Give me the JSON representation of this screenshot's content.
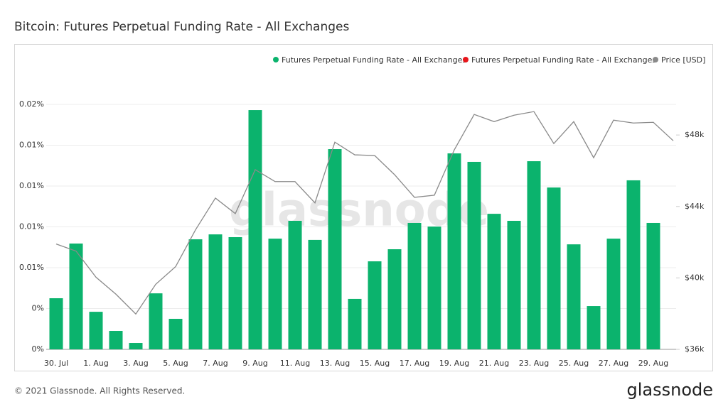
{
  "chart_data": {
    "type": "bar",
    "title": "Bitcoin: Futures Perpetual Funding Rate - All Exchanges",
    "footer": "© 2021 Glassnode. All Rights Reserved.",
    "logo": "glassnode",
    "watermark": "glassnode",
    "categories": [
      "30. Jul",
      null,
      "1. Aug",
      null,
      "3. Aug",
      null,
      "5. Aug",
      null,
      "7. Aug",
      null,
      "9. Aug",
      null,
      "11. Aug",
      null,
      "13. Aug",
      null,
      "15. Aug",
      null,
      "17. Aug",
      null,
      "19. Aug",
      null,
      "21. Aug",
      null,
      "23. Aug",
      null,
      "25. Aug",
      null,
      "27. Aug",
      null,
      "29. Aug",
      null
    ],
    "series": [
      {
        "name": "Futures Perpetual Funding Rate - All Exchanges",
        "type": "bar",
        "color": "#0bb36d",
        "values": [
          0.00313,
          0.00648,
          0.0023,
          0.00113,
          0.00039,
          0.00343,
          0.00187,
          0.00674,
          0.00704,
          0.00687,
          0.01465,
          0.00678,
          0.00787,
          0.0067,
          0.01226,
          0.00309,
          0.00539,
          0.00613,
          0.00774,
          0.00752,
          0.012,
          0.01148,
          0.0083,
          0.00787,
          0.01152,
          0.00991,
          0.00643,
          0.00265,
          0.00678,
          0.01035,
          0.00774,
          null
        ]
      },
      {
        "name": "Futures Perpetual Funding Rate - All Exchanges",
        "type": "bar",
        "color": "#e8151b",
        "values": [
          null,
          null,
          null,
          null,
          null,
          null,
          null,
          null,
          null,
          null,
          null,
          null,
          null,
          null,
          null,
          null,
          null,
          null,
          null,
          null,
          null,
          null,
          null,
          null,
          null,
          null,
          null,
          null,
          null,
          null,
          null,
          null
        ]
      },
      {
        "name": "Price [USD]",
        "type": "line",
        "axis": "y2",
        "color": "#8a8a8a",
        "values": [
          41900,
          41500,
          40040,
          39090,
          37980,
          39640,
          40630,
          42690,
          44470,
          43600,
          46060,
          45390,
          45390,
          44200,
          47600,
          46890,
          46850,
          45780,
          44510,
          44630,
          47170,
          49150,
          48750,
          49110,
          49310,
          47520,
          48750,
          46730,
          48830,
          48670,
          48710,
          47680
        ]
      }
    ],
    "ylim": [
      0,
      0.0175
    ],
    "yticks": [
      {
        "value": 0,
        "label": "0%"
      },
      {
        "value": 0.0025,
        "label": "0%"
      },
      {
        "value": 0.005,
        "label": "0.01%"
      },
      {
        "value": 0.0075,
        "label": "0.01%"
      },
      {
        "value": 0.01,
        "label": "0.01%"
      },
      {
        "value": 0.0125,
        "label": "0.01%"
      },
      {
        "value": 0.015,
        "label": "0.02%"
      }
    ],
    "y2lim": [
      36000,
      52000
    ],
    "y2ticks": [
      {
        "value": 36000,
        "label": "$36k"
      },
      {
        "value": 40000,
        "label": "$40k"
      },
      {
        "value": 44000,
        "label": "$44k"
      },
      {
        "value": 48000,
        "label": "$48k"
      }
    ],
    "grid": true,
    "legend": "top-right"
  }
}
